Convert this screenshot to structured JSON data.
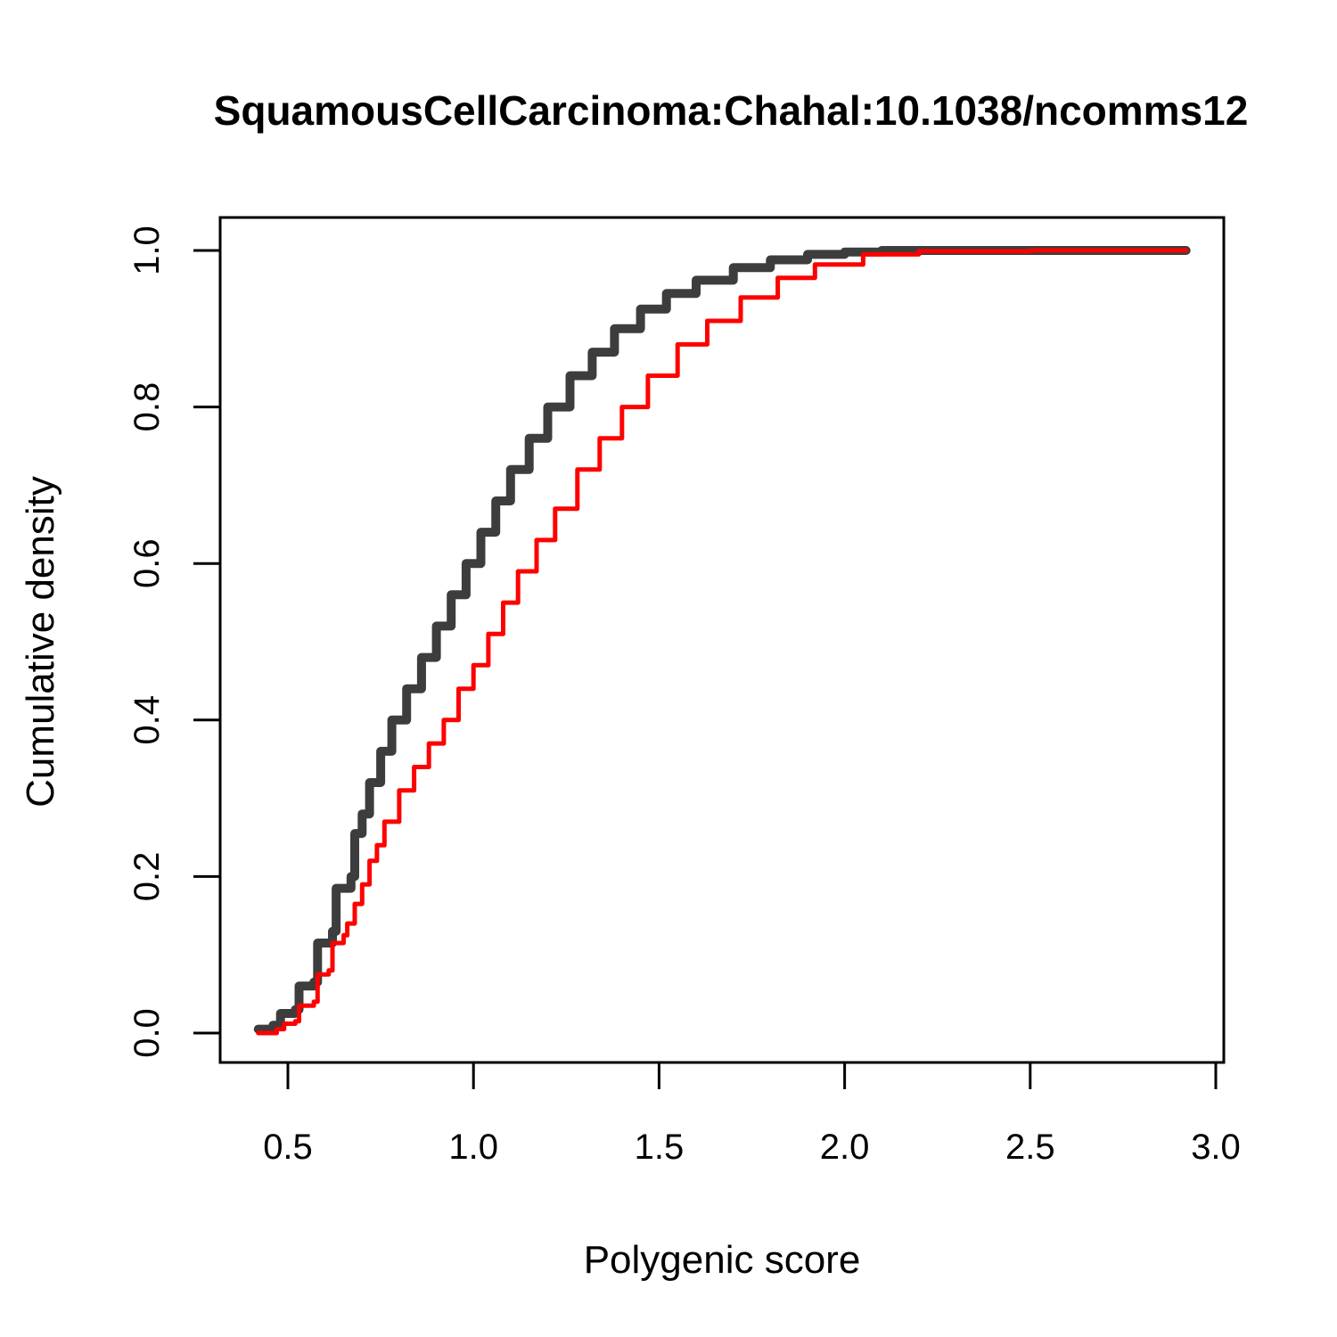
{
  "chart_data": {
    "type": "line",
    "title": "SquamousCellCarcinoma:Chahal:10.1038/ncomms12",
    "xlabel": "Polygenic score",
    "ylabel": "Cumulative density",
    "xlim": [
      0.4,
      2.95
    ],
    "ylim": [
      -0.04,
      1.04
    ],
    "x_ticks": [
      {
        "value": 0.5,
        "label": "0.5"
      },
      {
        "value": 1.0,
        "label": "1.0"
      },
      {
        "value": 1.5,
        "label": "1.5"
      },
      {
        "value": 2.0,
        "label": "2.0"
      },
      {
        "value": 2.5,
        "label": "2.5"
      },
      {
        "value": 3.0,
        "label": "3.0"
      }
    ],
    "y_ticks": [
      {
        "value": 0.0,
        "label": "0.0"
      },
      {
        "value": 0.2,
        "label": "0.2"
      },
      {
        "value": 0.4,
        "label": "0.4"
      },
      {
        "value": 0.6,
        "label": "0.6"
      },
      {
        "value": 0.8,
        "label": "0.8"
      },
      {
        "value": 1.0,
        "label": "1.0"
      }
    ],
    "grid": false,
    "legend": "none",
    "series": [
      {
        "color": "#333333",
        "points": [
          [
            0.42,
            0.005
          ],
          [
            0.46,
            0.01
          ],
          [
            0.48,
            0.025
          ],
          [
            0.52,
            0.03
          ],
          [
            0.53,
            0.06
          ],
          [
            0.57,
            0.065
          ],
          [
            0.58,
            0.115
          ],
          [
            0.62,
            0.13
          ],
          [
            0.63,
            0.185
          ],
          [
            0.67,
            0.2
          ],
          [
            0.68,
            0.255
          ],
          [
            0.7,
            0.28
          ],
          [
            0.72,
            0.32
          ],
          [
            0.75,
            0.36
          ],
          [
            0.78,
            0.4
          ],
          [
            0.82,
            0.44
          ],
          [
            0.86,
            0.48
          ],
          [
            0.9,
            0.52
          ],
          [
            0.94,
            0.56
          ],
          [
            0.98,
            0.6
          ],
          [
            1.02,
            0.64
          ],
          [
            1.06,
            0.68
          ],
          [
            1.1,
            0.72
          ],
          [
            1.15,
            0.76
          ],
          [
            1.2,
            0.8
          ],
          [
            1.26,
            0.84
          ],
          [
            1.32,
            0.87
          ],
          [
            1.38,
            0.9
          ],
          [
            1.45,
            0.925
          ],
          [
            1.52,
            0.945
          ],
          [
            1.6,
            0.962
          ],
          [
            1.7,
            0.978
          ],
          [
            1.8,
            0.988
          ],
          [
            1.9,
            0.995
          ],
          [
            2.0,
            0.998
          ],
          [
            2.1,
            1.0
          ],
          [
            2.5,
            1.0
          ],
          [
            2.92,
            1.0
          ]
        ]
      },
      {
        "color": "#ff0000",
        "points": [
          [
            0.42,
            0.0
          ],
          [
            0.47,
            0.005
          ],
          [
            0.49,
            0.012
          ],
          [
            0.52,
            0.015
          ],
          [
            0.53,
            0.035
          ],
          [
            0.57,
            0.04
          ],
          [
            0.58,
            0.075
          ],
          [
            0.61,
            0.08
          ],
          [
            0.62,
            0.115
          ],
          [
            0.65,
            0.125
          ],
          [
            0.66,
            0.14
          ],
          [
            0.68,
            0.165
          ],
          [
            0.7,
            0.19
          ],
          [
            0.72,
            0.22
          ],
          [
            0.74,
            0.24
          ],
          [
            0.76,
            0.27
          ],
          [
            0.8,
            0.31
          ],
          [
            0.84,
            0.34
          ],
          [
            0.88,
            0.37
          ],
          [
            0.92,
            0.4
          ],
          [
            0.96,
            0.44
          ],
          [
            1.0,
            0.47
          ],
          [
            1.04,
            0.51
          ],
          [
            1.08,
            0.55
          ],
          [
            1.12,
            0.59
          ],
          [
            1.17,
            0.63
          ],
          [
            1.22,
            0.67
          ],
          [
            1.28,
            0.72
          ],
          [
            1.34,
            0.76
          ],
          [
            1.4,
            0.8
          ],
          [
            1.47,
            0.84
          ],
          [
            1.55,
            0.88
          ],
          [
            1.63,
            0.91
          ],
          [
            1.72,
            0.94
          ],
          [
            1.82,
            0.965
          ],
          [
            1.92,
            0.982
          ],
          [
            2.05,
            0.995
          ],
          [
            2.2,
            0.999
          ],
          [
            2.5,
            1.0
          ],
          [
            2.92,
            1.0
          ]
        ]
      }
    ]
  }
}
